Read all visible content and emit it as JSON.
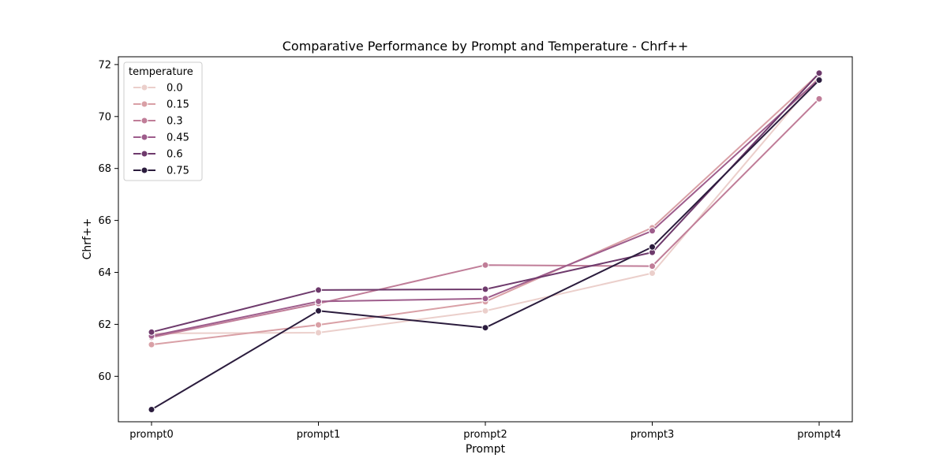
{
  "chart_data": {
    "type": "line",
    "title": "Comparative Performance by Prompt and Temperature - Chrf++",
    "xlabel": "Prompt",
    "ylabel": "Chrf++",
    "categories": [
      "prompt0",
      "prompt1",
      "prompt2",
      "prompt3",
      "prompt4"
    ],
    "ylim": [
      58.25,
      72.3
    ],
    "yticks": [
      60,
      62,
      64,
      66,
      68,
      70,
      72
    ],
    "grid": false,
    "legend": {
      "title": "temperature",
      "placement": "top-left"
    },
    "series": [
      {
        "name": "0.0",
        "color": "#ebcfcb",
        "values": [
          61.65,
          61.68,
          62.52,
          63.97,
          71.55
        ]
      },
      {
        "name": "0.15",
        "color": "#d9a0a6",
        "values": [
          61.22,
          61.98,
          62.87,
          65.72,
          71.65
        ]
      },
      {
        "name": "0.3",
        "color": "#c07d98",
        "values": [
          61.5,
          62.8,
          64.28,
          64.24,
          70.68
        ]
      },
      {
        "name": "0.45",
        "color": "#9e5d8c",
        "values": [
          61.55,
          62.88,
          62.99,
          65.6,
          71.45
        ]
      },
      {
        "name": "0.6",
        "color": "#6e3a6c",
        "values": [
          61.7,
          63.32,
          63.35,
          64.77,
          71.67
        ]
      },
      {
        "name": "0.75",
        "color": "#2b1c3d",
        "values": [
          58.72,
          62.52,
          61.87,
          64.98,
          71.4
        ]
      }
    ]
  }
}
